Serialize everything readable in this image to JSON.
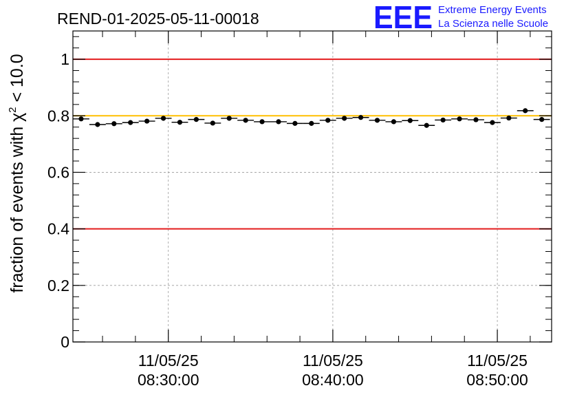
{
  "header": {
    "run_id": "REND-01-2025-05-11-00018",
    "logo_text": "EEE",
    "logo_line1": "Extreme Energy Events",
    "logo_line2": "La Scienza nelle Scuole"
  },
  "colors": {
    "logo_blue": "#1a1aff",
    "limit_red": "#e31a1c",
    "reference_orange": "#ffbf00",
    "marker": "#000000",
    "grid": "#999999"
  },
  "chart_data": {
    "type": "scatter",
    "title": "REND-01-2025-05-11-00018",
    "ylabel_main": "fraction of events with χ",
    "ylabel_sup": "2",
    "ylabel_tail": " < 10.0",
    "xlabel": "",
    "ylim": [
      0,
      1.1
    ],
    "y_ticks": [
      0,
      0.2,
      0.4,
      0.6,
      0.8,
      1
    ],
    "y_tick_labels": [
      "0",
      "0.2",
      "0.4",
      "0.6",
      "0.8",
      "1"
    ],
    "x_range_minutes": [
      24.2,
      53.3
    ],
    "x_major_ticks": [
      {
        "minute": 30,
        "date": "11/05/25",
        "time": "08:30:00"
      },
      {
        "minute": 40,
        "date": "11/05/25",
        "time": "08:40:00"
      },
      {
        "minute": 50,
        "date": "11/05/25",
        "time": "08:50:00"
      }
    ],
    "x_minor_step_minutes": 2,
    "bin_halfwidth_minutes": 0.5,
    "points_x_minutes": [
      24.7,
      25.7,
      26.7,
      27.7,
      28.7,
      29.7,
      30.7,
      31.7,
      32.7,
      33.7,
      34.7,
      35.7,
      36.7,
      37.7,
      38.7,
      39.7,
      40.7,
      41.7,
      42.7,
      43.7,
      44.7,
      45.7,
      46.7,
      47.7,
      48.7,
      49.7,
      50.7,
      51.7,
      52.7
    ],
    "points_y": [
      0.789,
      0.769,
      0.772,
      0.776,
      0.781,
      0.791,
      0.777,
      0.787,
      0.774,
      0.791,
      0.784,
      0.779,
      0.779,
      0.773,
      0.773,
      0.784,
      0.791,
      0.794,
      0.784,
      0.779,
      0.783,
      0.766,
      0.785,
      0.789,
      0.786,
      0.776,
      0.792,
      0.818,
      0.787
    ],
    "reference_lines": [
      {
        "name": "upper-limit",
        "y": 1.0,
        "color": "#e31a1c"
      },
      {
        "name": "reference",
        "y": 0.8,
        "color": "#ffbf00"
      },
      {
        "name": "lower-limit",
        "y": 0.4,
        "color": "#e31a1c"
      }
    ]
  }
}
